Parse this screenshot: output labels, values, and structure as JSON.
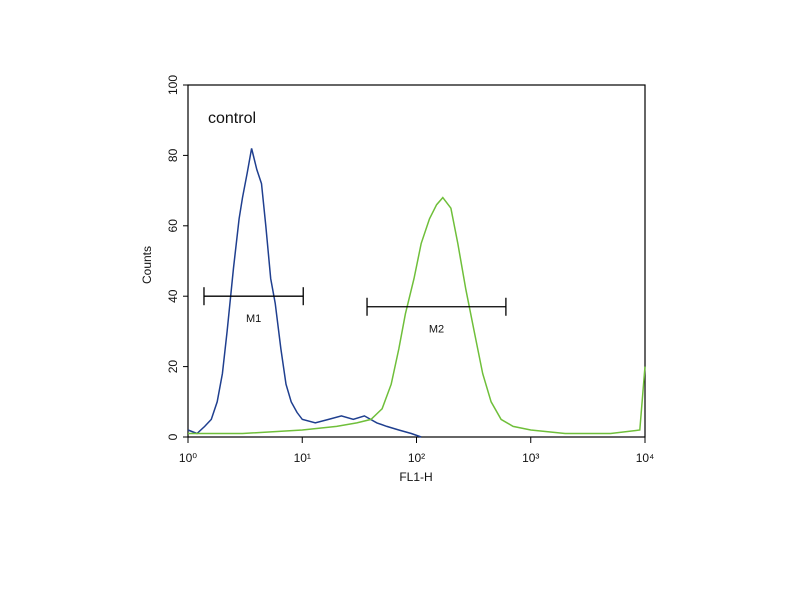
{
  "chart_data": {
    "type": "line",
    "annotation": "control",
    "xlabel": "FL1-H",
    "ylabel": "Counts",
    "xscale": "log",
    "xlim": [
      1,
      10000
    ],
    "xticks": [
      {
        "value": 1,
        "label": "10⁰"
      },
      {
        "value": 10,
        "label": "10¹"
      },
      {
        "value": 100,
        "label": "10²"
      },
      {
        "value": 1000,
        "label": "10³"
      },
      {
        "value": 10000,
        "label": "10⁴"
      }
    ],
    "ylim": [
      0,
      100
    ],
    "yticks": [
      0,
      20,
      40,
      60,
      80,
      100
    ],
    "series": [
      {
        "color": "#1f3f8f",
        "x": [
          1.0,
          1.2,
          1.4,
          1.6,
          1.8,
          2.0,
          2.2,
          2.5,
          2.8,
          3.0,
          3.3,
          3.6,
          4.0,
          4.4,
          4.8,
          5.3,
          5.8,
          6.5,
          7.2,
          8.0,
          9.0,
          10,
          13,
          17,
          22,
          28,
          35,
          45,
          55,
          70,
          90,
          110
        ],
        "values": [
          2,
          1,
          3,
          5,
          10,
          18,
          30,
          48,
          62,
          68,
          75,
          82,
          76,
          72,
          60,
          45,
          38,
          25,
          15,
          10,
          7,
          5,
          4,
          5,
          6,
          5,
          6,
          4,
          3,
          2,
          1,
          0
        ]
      },
      {
        "color": "#6fbf3a",
        "x": [
          1,
          3,
          10,
          20,
          30,
          40,
          50,
          60,
          70,
          80,
          95,
          110,
          130,
          150,
          170,
          200,
          230,
          270,
          320,
          380,
          450,
          550,
          700,
          1000,
          2000,
          5000,
          9000,
          10000
        ],
        "values": [
          1,
          1,
          2,
          3,
          4,
          5,
          8,
          15,
          25,
          35,
          45,
          55,
          62,
          66,
          68,
          65,
          55,
          42,
          30,
          18,
          10,
          5,
          3,
          2,
          1,
          1,
          2,
          20
        ]
      }
    ],
    "markers": [
      {
        "label": "M1",
        "x": [
          1.38,
          10.2
        ],
        "y": 40
      },
      {
        "label": "M2",
        "x": [
          36.9,
          606
        ],
        "y": 37
      }
    ]
  }
}
